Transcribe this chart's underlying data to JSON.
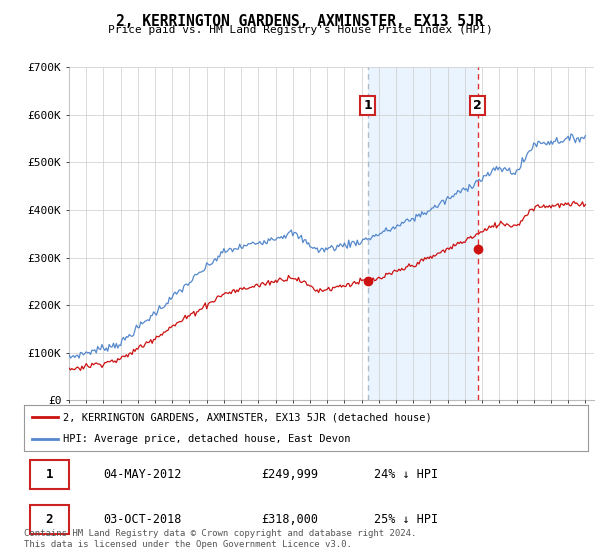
{
  "title": "2, KERRINGTON GARDENS, AXMINSTER, EX13 5JR",
  "subtitle": "Price paid vs. HM Land Registry's House Price Index (HPI)",
  "ylim": [
    0,
    700000
  ],
  "yticks": [
    0,
    100000,
    200000,
    300000,
    400000,
    500000,
    600000,
    700000
  ],
  "ytick_labels": [
    "£0",
    "£100K",
    "£200K",
    "£300K",
    "£400K",
    "£500K",
    "£600K",
    "£700K"
  ],
  "hpi_color": "#5588cc",
  "price_color": "#cc1111",
  "dashed_line_color_1": "#aabbcc",
  "dashed_line_color_2": "#dd3333",
  "shade_color": "#ddeeff",
  "sale1_year": 2012.35,
  "sale1_price": 249999,
  "sale2_year": 2018.75,
  "sale2_price": 318000,
  "legend_label_price": "2, KERRINGTON GARDENS, AXMINSTER, EX13 5JR (detached house)",
  "legend_label_hpi": "HPI: Average price, detached house, East Devon",
  "table_row1": [
    "1",
    "04-MAY-2012",
    "£249,999",
    "24% ↓ HPI"
  ],
  "table_row2": [
    "2",
    "03-OCT-2018",
    "£318,000",
    "25% ↓ HPI"
  ],
  "footer": "Contains HM Land Registry data © Crown copyright and database right 2024.\nThis data is licensed under the Open Government Licence v3.0.",
  "background_color": "#ffffff",
  "grid_color": "#cccccc",
  "box_edge_color": "#cc2222"
}
